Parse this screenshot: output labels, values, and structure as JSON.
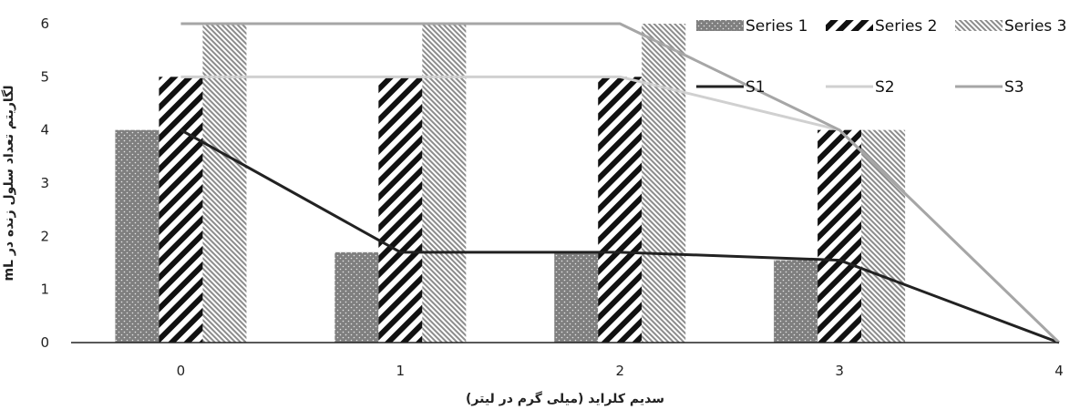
{
  "chart_data": {
    "type": "bar",
    "title": "",
    "xlabel": "سدیم کلراید (میلی گرم در لیتر)",
    "ylabel": "لگاریتم تعداد سلول زنده در mL",
    "x": [
      0,
      1,
      2,
      3,
      4
    ],
    "x_tick_labels": [
      "0",
      "1",
      "2",
      "3",
      "4"
    ],
    "ylim": [
      0,
      6
    ],
    "y_ticks": [
      0,
      1,
      2,
      3,
      4,
      5,
      6
    ],
    "grid": false,
    "legend_position": "top-right",
    "bar_series": [
      {
        "name": "Series 1",
        "values": [
          4,
          1.7,
          1.7,
          1.55,
          0
        ],
        "color": "#7f7f7f",
        "pattern": "dotted"
      },
      {
        "name": "Series 2",
        "values": [
          5,
          5,
          5,
          4,
          0
        ],
        "color": "#111111",
        "pattern": "diagonal-stripes"
      },
      {
        "name": "Series 3",
        "values": [
          6,
          6,
          6,
          4,
          0
        ],
        "color": "#8c8c8c",
        "pattern": "fine-diagonal-stripes"
      }
    ],
    "line_series": [
      {
        "name": "S1",
        "values": [
          4,
          1.7,
          1.7,
          1.55,
          0
        ],
        "color": "#222222"
      },
      {
        "name": "S2",
        "values": [
          5,
          5,
          5,
          4,
          0
        ],
        "color": "#d0d0d0"
      },
      {
        "name": "S3",
        "values": [
          6,
          6,
          6,
          4,
          0
        ],
        "color": "#a6a6a6"
      }
    ]
  }
}
